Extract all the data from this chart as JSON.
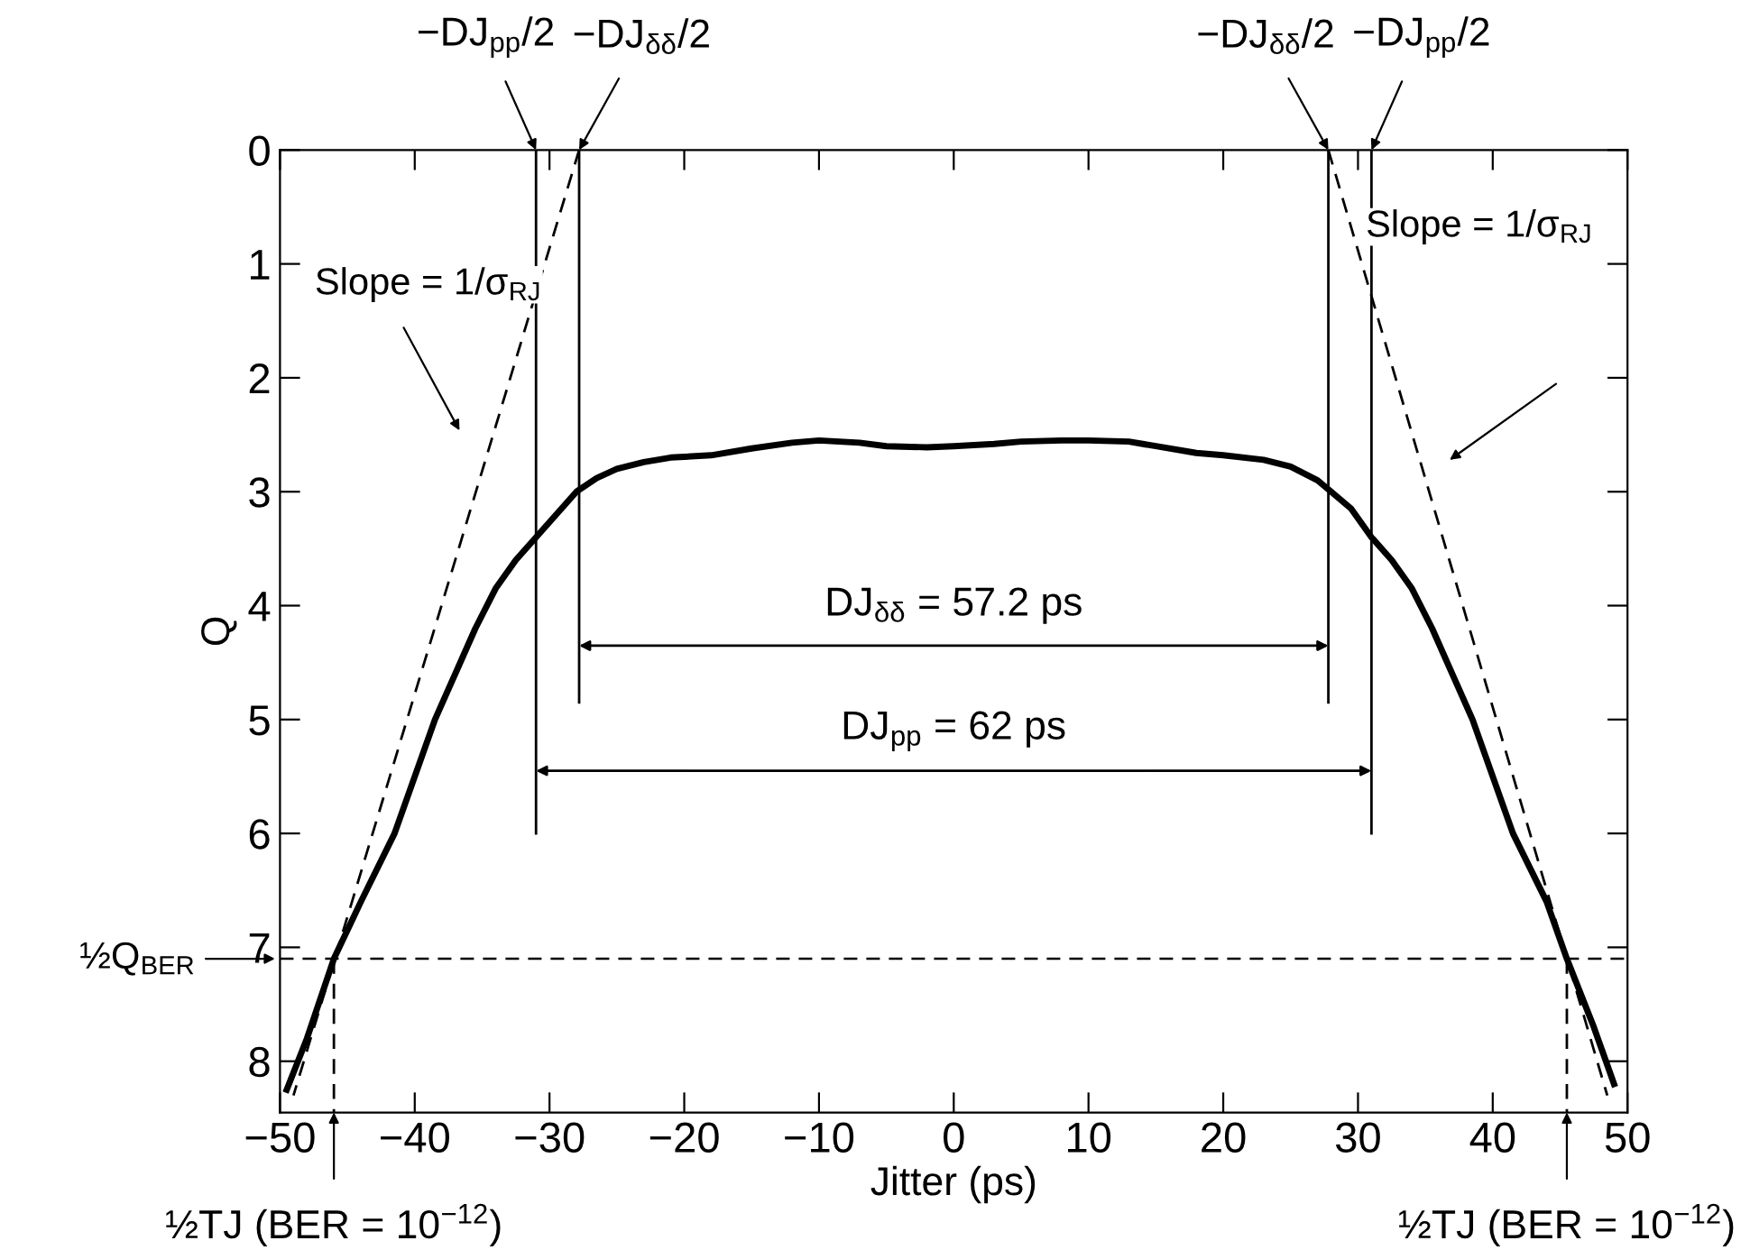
{
  "chart_data": {
    "type": "line",
    "xlabel": "Jitter (ps)",
    "ylabel": "Q",
    "xlim": [
      -50,
      50
    ],
    "xticks": [
      -50,
      -40,
      -30,
      -20,
      -10,
      0,
      10,
      20,
      30,
      40,
      50
    ],
    "ylim": [
      8.45,
      0
    ],
    "yticks": [
      0,
      1,
      2,
      3,
      4,
      5,
      6,
      7,
      8
    ],
    "grid": false,
    "legend": false,
    "marker": "none",
    "series": [
      {
        "color": "#000000",
        "x": [
          -49.5,
          -48,
          -46,
          -44,
          -41.5,
          -38.5,
          -37,
          -35.5,
          -34,
          -32.5,
          -31,
          -29.5,
          -28,
          -26.5,
          -25,
          -23,
          -21,
          -18,
          -15,
          -12,
          -10,
          -7,
          -5,
          -2,
          0,
          3,
          5,
          8,
          10,
          13,
          15,
          18,
          20,
          23,
          25,
          27,
          28,
          29.5,
          31,
          32.5,
          34,
          35.5,
          37,
          38.5,
          41.5,
          44,
          45.5,
          47.5,
          49
        ],
        "values": [
          8.25,
          7.8,
          7.1,
          6.6,
          6.0,
          5.0,
          4.6,
          4.2,
          3.85,
          3.6,
          3.4,
          3.2,
          3.0,
          2.88,
          2.8,
          2.74,
          2.7,
          2.68,
          2.62,
          2.57,
          2.55,
          2.57,
          2.6,
          2.61,
          2.6,
          2.58,
          2.56,
          2.55,
          2.55,
          2.56,
          2.6,
          2.66,
          2.68,
          2.72,
          2.78,
          2.9,
          3.0,
          3.15,
          3.4,
          3.6,
          3.85,
          4.2,
          4.6,
          5.0,
          6.0,
          6.6,
          7.1,
          7.7,
          8.2
        ]
      },
      {
        "color": "#000000",
        "x": [
          -31,
          -31
        ],
        "values": [
          0,
          6
        ]
      },
      {
        "color": "#000000",
        "x": [
          -27.8,
          -27.8
        ],
        "values": [
          0,
          4.85
        ]
      },
      {
        "color": "#000000",
        "x": [
          27.8,
          27.8
        ],
        "values": [
          0,
          4.85
        ]
      },
      {
        "color": "#000000",
        "x": [
          31,
          31
        ],
        "values": [
          0,
          6
        ]
      },
      {
        "color": "#000000",
        "x": [
          -27.8,
          -49
        ],
        "values": [
          0,
          8.3
        ],
        "line_style": "dashed"
      },
      {
        "color": "#000000",
        "x": [
          27.8,
          48.5
        ],
        "values": [
          0,
          8.3
        ],
        "line_style": "dashed"
      },
      {
        "color": "#000000",
        "x": [
          -46,
          -46
        ],
        "values": [
          7.1,
          8.45
        ],
        "line_style": "dashed"
      },
      {
        "color": "#000000",
        "x": [
          45.5,
          45.5
        ],
        "values": [
          7.1,
          8.45
        ],
        "line_style": "dashed"
      }
    ],
    "ref_lines": [
      {
        "axis": "y",
        "value": 7.1,
        "label": "½Q$_{BER}$",
        "line_style": "dashed",
        "color": "#000000"
      }
    ],
    "annotations": [
      {
        "text": "−DJ$_{pp}$/2",
        "x": -31,
        "y": 0
      },
      {
        "text": "−DJ$_{δδ}$/2",
        "x": -27.8,
        "y": 0
      },
      {
        "text": "−DJ$_{δδ}$/2",
        "x": 27.8,
        "y": 0
      },
      {
        "text": "−DJ$_{pp}$/2",
        "x": 31,
        "y": 0
      },
      "Slope = 1/σ$_{RJ}$",
      "Slope = 1/σ$_{RJ}$",
      "DJ$_{δδ}$ = 57.2 ps",
      "DJ$_{pp}$ = 62 ps",
      {
        "text": "½TJ (BER = 10$^{−12}$)",
        "x": -46,
        "y": 8.45
      },
      {
        "text": "½TJ (BER = 10$^{−12}$)",
        "x": 45.5,
        "y": 8.45
      }
    ]
  }
}
